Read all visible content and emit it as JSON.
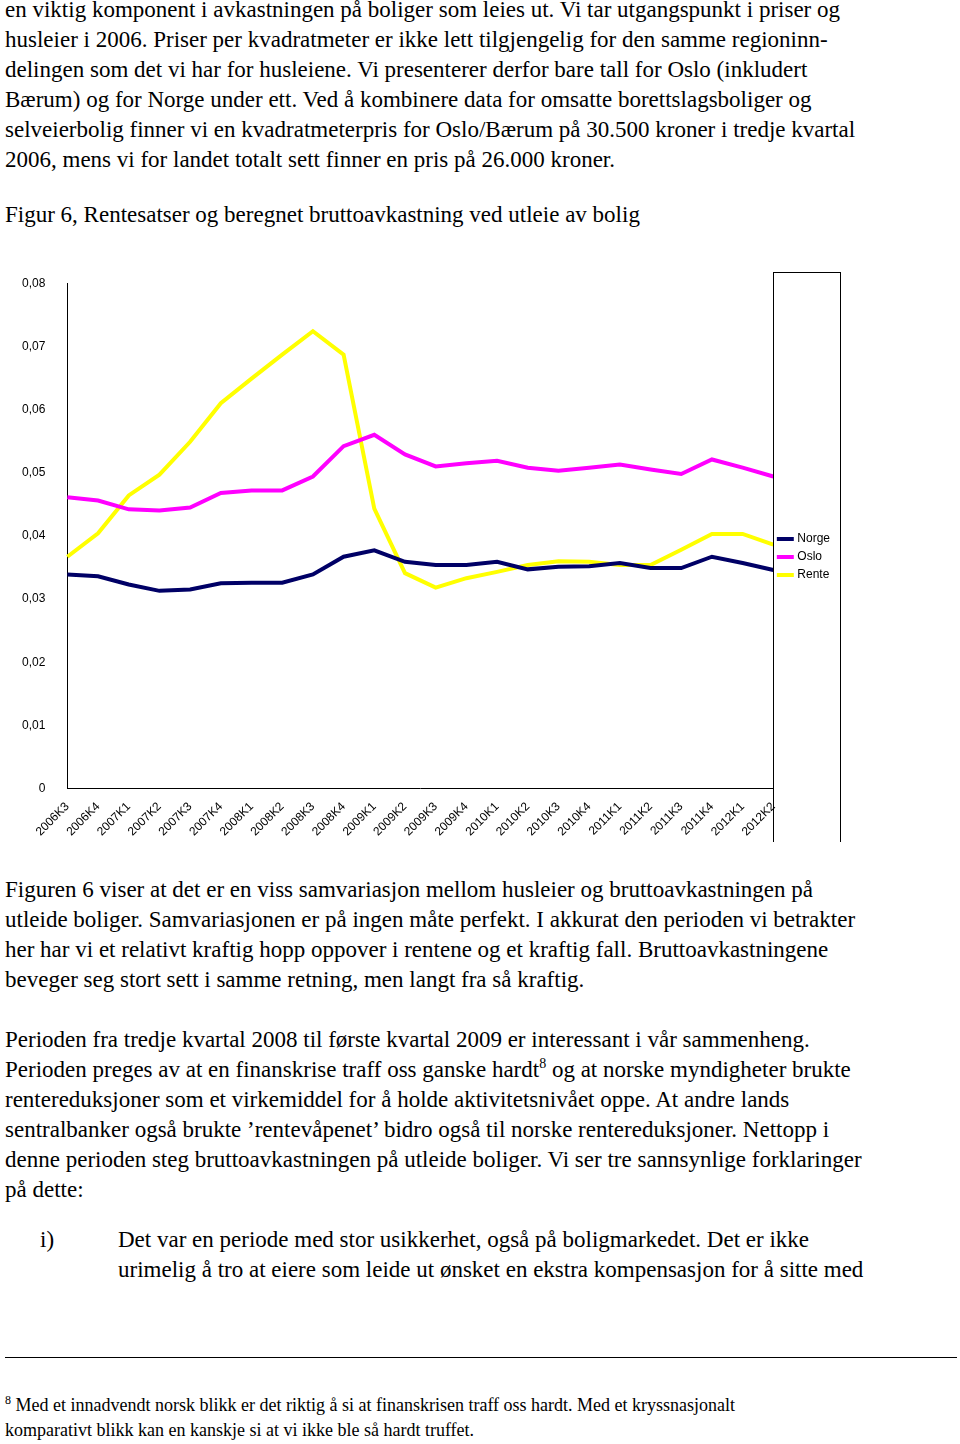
{
  "text_before": {
    "lines": [
      "en viktig komponent i avkastningen på boliger som leies ut. Vi tar utgangspunkt i priser og",
      "husleier i 2006. Priser per kvadratmeter er ikke lett tilgjengelig for den samme regioninn-",
      "delingen som det vi har for husleiene. Vi presenterer derfor bare tall for Oslo (inkludert",
      "Bærum) og for Norge under ett. Ved å kombinere data for omsatte borettslagsboliger og",
      "selveierbolig finner vi en kvadratmeterpris for Oslo/Bærum på 30.500 kroner i tredje kvartal",
      "2006, mens vi for landet totalt sett finner en pris på 26.000 kroner."
    ]
  },
  "chart_data": {
    "type": "line",
    "title": "Figur 6, Rentesatser og beregnet bruttoavkastning ved utleie av bolig",
    "categories": [
      "2006K3",
      "2006K4",
      "2007K1",
      "2007K2",
      "2007K3",
      "2007K4",
      "2008K1",
      "2008K2",
      "2008K3",
      "2008K4",
      "2009K1",
      "2009K2",
      "2009K3",
      "2009K4",
      "2010K1",
      "2010K2",
      "2010K3",
      "2010K4",
      "2011K1",
      "2011K2",
      "2011K3",
      "2011K4",
      "2012K1",
      "2012K2"
    ],
    "series": [
      {
        "name": "Norge",
        "color": "#000066",
        "marker": "none",
        "line_style": "solid",
        "values": [
          0.0339,
          0.0336,
          0.0323,
          0.0313,
          0.0315,
          0.0325,
          0.0326,
          0.0326,
          0.0339,
          0.0367,
          0.0377,
          0.0359,
          0.0354,
          0.0354,
          0.0359,
          0.0347,
          0.0351,
          0.0352,
          0.0357,
          0.0349,
          0.0349,
          0.0367,
          0.0357,
          0.0346
        ]
      },
      {
        "name": "Oslo",
        "color": "#ff00ff",
        "marker": "none",
        "line_style": "solid",
        "values": [
          0.0461,
          0.0456,
          0.0442,
          0.044,
          0.0445,
          0.0468,
          0.0472,
          0.0472,
          0.0494,
          0.0542,
          0.056,
          0.0529,
          0.051,
          0.0515,
          0.0519,
          0.0508,
          0.0503,
          0.0508,
          0.0513,
          0.0505,
          0.0498,
          0.0521,
          0.0508,
          0.0494
        ]
      },
      {
        "name": "Rente",
        "color": "#ffff00",
        "marker": "none",
        "line_style": "solid",
        "values": [
          0.0367,
          0.0404,
          0.0464,
          0.0497,
          0.0549,
          0.061,
          0.0649,
          0.0687,
          0.0724,
          0.0687,
          0.0443,
          0.0341,
          0.0318,
          0.0333,
          0.0343,
          0.0354,
          0.036,
          0.0359,
          0.0354,
          0.0354,
          0.0378,
          0.0403,
          0.0403,
          0.0386
        ]
      }
    ],
    "ylim": [
      0,
      0.08
    ],
    "yticks": [
      0,
      {
        "value": 0.01,
        "label": "0,01"
      },
      {
        "value": 0.02,
        "label": "0,02"
      },
      {
        "value": 0.03,
        "label": "0,03"
      },
      {
        "value": 0.04,
        "label": "0,04"
      },
      {
        "value": 0.05,
        "label": "0,05"
      },
      {
        "value": 0.06,
        "label": "0,06"
      },
      {
        "value": 0.07,
        "label": "0,07"
      },
      {
        "value": 0.08,
        "label": "0,08"
      }
    ],
    "grid": false,
    "legend": "right"
  },
  "text_after": [
    {
      "lines": [
        "Figuren 6 viser at det er en viss samvariasjon mellom husleier og bruttoavkastningen på",
        "utleide boliger. Samvariasjonen er på ingen måte perfekt. I akkurat den perioden vi betrakter",
        "her har vi et relativt kraftig hopp oppover i rentene og et kraftig fall. Bruttoavkastningene",
        "beveger seg stort sett i samme retning, men langt fra så kraftig."
      ]
    },
    {
      "lines": [
        "Perioden fra tredje kvartal 2008 til første kvartal 2009 er interessant i vår sammenheng.",
        {
          "text": "Perioden preges av at en finanskrise traff oss ganske hardt",
          "sup": "8",
          "after": " og at norske myndigheter brukte"
        },
        "rentereduksjoner som et virkemiddel for å holde aktivitetsnivået oppe. At andre lands",
        "sentralbanker også brukte ’rentevåpenet’ bidro også til norske rentereduksjoner. Nettopp i",
        "denne perioden steg bruttoavkastningen på utleide boliger. Vi ser tre sannsynlige forklaringer",
        "på dette:"
      ]
    }
  ],
  "list": [
    {
      "label": "i)",
      "lines": [
        "Det var en periode med stor usikkerhet, også på boligmarkedet. Det er ikke",
        "urimelig å tro at eiere som leide ut ønsket en ekstra kompensasjon for å sitte med"
      ]
    }
  ],
  "footnote": {
    "marker": "8",
    "lines": [
      "Med et innadvendt norsk blikk er det riktig å si at finanskrisen traff oss hardt. Med et kryssnasjonalt",
      "komparativt blikk kan en kanskje si at vi ikke ble så hardt truffet."
    ]
  }
}
